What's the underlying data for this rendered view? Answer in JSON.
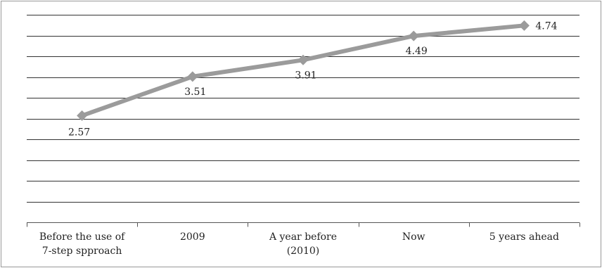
{
  "chart_data": {
    "type": "line",
    "categories": [
      [
        "Before the use of",
        "7-step spproach"
      ],
      [
        "2009"
      ],
      [
        "A year before",
        "(2010)"
      ],
      [
        "Now"
      ],
      [
        "5 years ahead"
      ]
    ],
    "series": [
      {
        "values": [
          2.57,
          3.51,
          3.91,
          4.49,
          4.74
        ]
      }
    ],
    "data_labels": [
      "2.57",
      "3.51",
      "3.91",
      "4.49",
      "4.74"
    ],
    "ylim": [
      0,
      5
    ],
    "y_gridline_step": 0.5,
    "grid": true,
    "legend": "none",
    "colors": {
      "line": "#9b9b9b",
      "grid": "#333333",
      "axis": "#555555",
      "frame": "#999999"
    }
  }
}
